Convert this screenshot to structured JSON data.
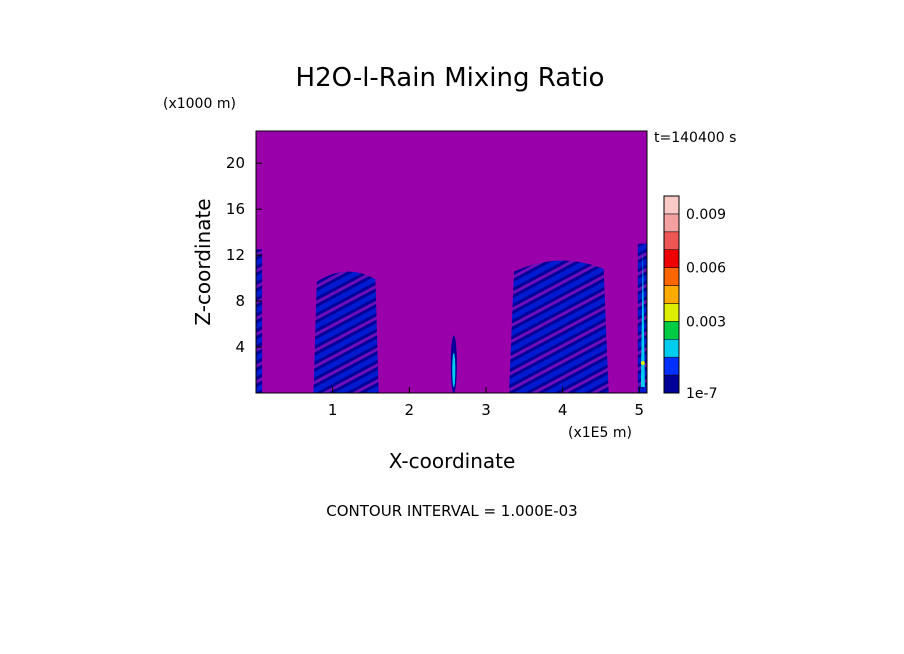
{
  "chart_data": {
    "type": "heatmap",
    "title": "H2O-l-Rain Mixing Ratio",
    "y_unit": "(x1000 m)",
    "x_unit": "(x1E5 m)",
    "xlabel": "X-coordinate",
    "ylabel": "Z-coordinate",
    "time_label": "t=140400 s",
    "footer": "CONTOUR INTERVAL = 1.000E-03",
    "xlim": [
      0,
      5.1
    ],
    "ylim": [
      0,
      22.8
    ],
    "x_ticks": [
      "1",
      "2",
      "3",
      "4",
      "5"
    ],
    "y_ticks": [
      "4",
      "8",
      "12",
      "16",
      "20"
    ],
    "x_tick_values": [
      1,
      2,
      3,
      4,
      5
    ],
    "y_tick_values": [
      4,
      8,
      12,
      16,
      20
    ],
    "colorbar": {
      "labels": [
        "1e-7",
        "0.003",
        "0.006",
        "0.009"
      ],
      "label_levels": [
        0,
        3,
        6,
        9
      ],
      "colors": [
        "#000099",
        "#0030ff",
        "#00ccee",
        "#00cc44",
        "#ddee00",
        "#ffaa00",
        "#ff6600",
        "#ee0000",
        "#ee5555",
        "#f4a0a0",
        "#f9c9c6"
      ]
    },
    "background_color": "#9900aa",
    "regions": [
      {
        "name": "left-edge",
        "x": [
          0.0,
          0.08
        ],
        "z_top": 12.5,
        "level": 0
      },
      {
        "name": "cell-1",
        "x": [
          0.75,
          1.6
        ],
        "z_top": 11.0,
        "level": 0
      },
      {
        "name": "cell-2",
        "x": [
          2.54,
          2.62
        ],
        "z_top": 5.0,
        "level": 1
      },
      {
        "name": "cell-3",
        "x": [
          3.3,
          4.6
        ],
        "z_top": 12.0,
        "level": 0
      },
      {
        "name": "cell-4",
        "x": [
          4.98,
          5.1
        ],
        "z_top": 13.0,
        "level": 3
      }
    ]
  }
}
